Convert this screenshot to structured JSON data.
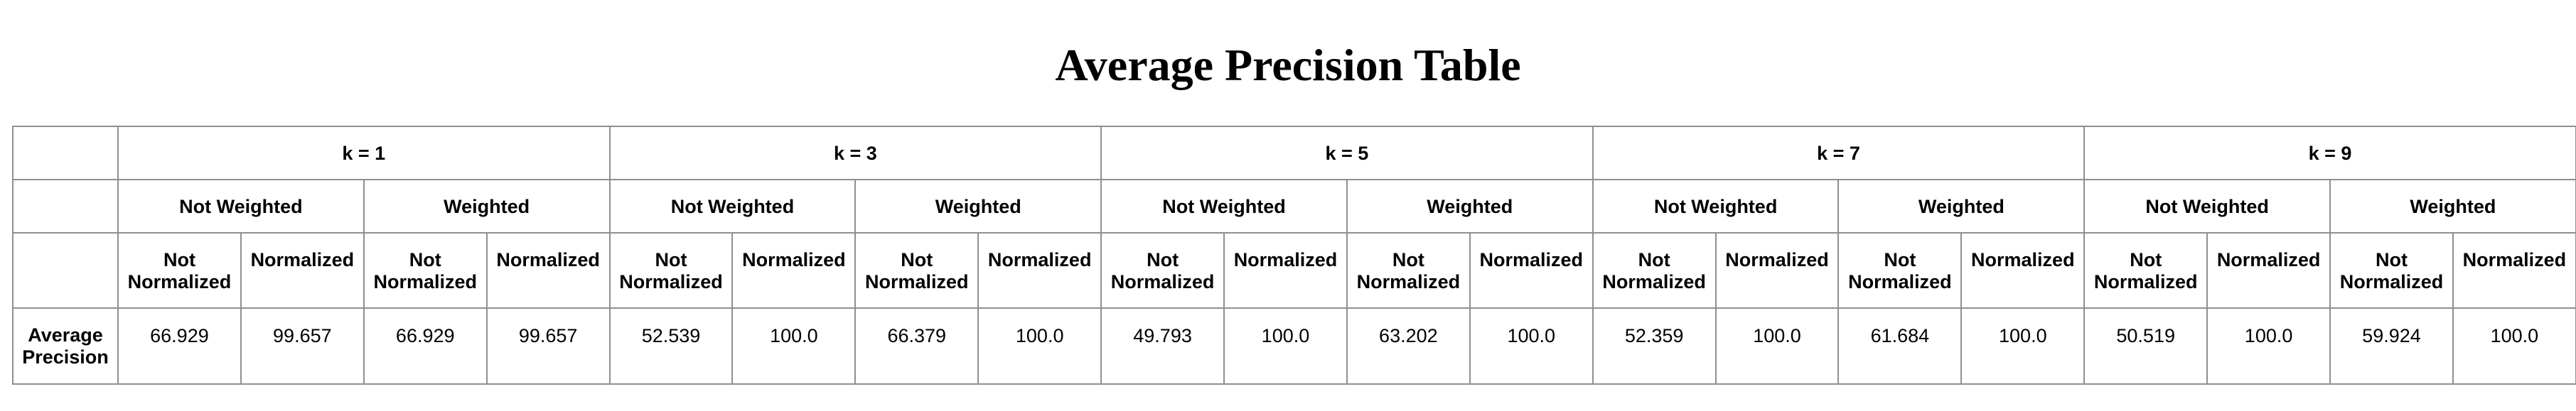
{
  "title": "Average Precision Table",
  "k_groups": [
    {
      "label": "k = 1",
      "weights": [
        {
          "label": "Not Weighted",
          "cols": [
            "Not Normalized",
            "Normalized"
          ],
          "values": [
            "66.929",
            "99.657"
          ]
        },
        {
          "label": "Weighted",
          "cols": [
            "Not Normalized",
            "Normalized"
          ],
          "values": [
            "66.929",
            "99.657"
          ]
        }
      ]
    },
    {
      "label": "k = 3",
      "weights": [
        {
          "label": "Not Weighted",
          "cols": [
            "Not Normalized",
            "Normalized"
          ],
          "values": [
            "52.539",
            "100.0"
          ]
        },
        {
          "label": "Weighted",
          "cols": [
            "Not Normalized",
            "Normalized"
          ],
          "values": [
            "66.379",
            "100.0"
          ]
        }
      ]
    },
    {
      "label": "k = 5",
      "weights": [
        {
          "label": "Not Weighted",
          "cols": [
            "Not Normalized",
            "Normalized"
          ],
          "values": [
            "49.793",
            "100.0"
          ]
        },
        {
          "label": "Weighted",
          "cols": [
            "Not Normalized",
            "Normalized"
          ],
          "values": [
            "63.202",
            "100.0"
          ]
        }
      ]
    },
    {
      "label": "k = 7",
      "weights": [
        {
          "label": "Not Weighted",
          "cols": [
            "Not Normalized",
            "Normalized"
          ],
          "values": [
            "52.359",
            "100.0"
          ]
        },
        {
          "label": "Weighted",
          "cols": [
            "Not Normalized",
            "Normalized"
          ],
          "values": [
            "61.684",
            "100.0"
          ]
        }
      ]
    },
    {
      "label": "k = 9",
      "weights": [
        {
          "label": "Not Weighted",
          "cols": [
            "Not Normalized",
            "Normalized"
          ],
          "values": [
            "50.519",
            "100.0"
          ]
        },
        {
          "label": "Weighted",
          "cols": [
            "Not Normalized",
            "Normalized"
          ],
          "values": [
            "59.924",
            "100.0"
          ]
        }
      ]
    }
  ],
  "row_label": "Average Precision"
}
